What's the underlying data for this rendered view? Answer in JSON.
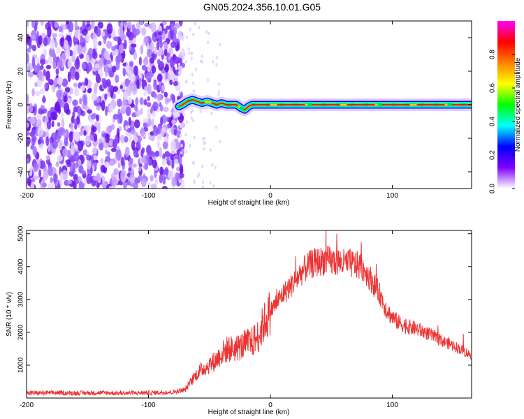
{
  "title": "GN05.2024.356.10.01.G05",
  "chart_data": [
    {
      "type": "heatmap",
      "title": "GN05.2024.356.10.01.G05",
      "xlabel": "Height of straight line (km)",
      "ylabel": "Frequency (Hz)",
      "xlim": [
        -200,
        165
      ],
      "ylim": [
        -50,
        50
      ],
      "xticks": [
        -200,
        -100,
        0,
        100
      ],
      "yticks": [
        -40,
        -20,
        0,
        20,
        40
      ],
      "grid": false,
      "noise_region_x": [
        -200,
        -75
      ],
      "signal_trace": {
        "x": [
          -75,
          -72,
          -68,
          -64,
          -60,
          -56,
          -52,
          -48,
          -44,
          -40,
          -36,
          -32,
          -28,
          -24,
          -21,
          -18,
          -15,
          -10,
          0,
          20,
          50,
          80,
          100,
          120,
          140,
          150,
          160,
          165
        ],
        "y": [
          -1,
          0,
          2,
          3,
          2,
          1,
          2,
          1,
          0,
          1,
          0,
          0,
          0,
          -2,
          -3,
          -1,
          0,
          0,
          0,
          0,
          0,
          0,
          0,
          0,
          0,
          0,
          0,
          0
        ]
      },
      "colorbar": {
        "label": "Normalized spectral amplitude",
        "range": [
          0,
          1
        ],
        "ticks": [
          "0.0",
          "0.2",
          "0.4",
          "0.6",
          "0.8"
        ],
        "colors": [
          "#ffffff",
          "#8000ff",
          "#0000ff",
          "#00ffff",
          "#00ff00",
          "#ffff00",
          "#ff8000",
          "#ff0000",
          "#ff00ff"
        ]
      }
    },
    {
      "type": "line",
      "xlabel": "Height of straight line (km)",
      "ylabel": "SNR (10 * v/v)",
      "xlim": [
        -200,
        165
      ],
      "ylim": [
        0,
        5100
      ],
      "xticks": [
        -200,
        -100,
        0,
        100
      ],
      "yticks": [
        1000,
        2000,
        3000,
        4000,
        5000
      ],
      "grid": false,
      "series": [
        {
          "color": "#ee3333",
          "x": [
            -200,
            -180,
            -160,
            -140,
            -120,
            -100,
            -80,
            -70,
            -65,
            -60,
            -55,
            -50,
            -45,
            -40,
            -35,
            -30,
            -25,
            -20,
            -15,
            -10,
            -5,
            0,
            5,
            10,
            15,
            20,
            25,
            30,
            35,
            40,
            45,
            50,
            55,
            60,
            65,
            70,
            75,
            80,
            85,
            90,
            95,
            100,
            105,
            110,
            120,
            130,
            140,
            150,
            160,
            165
          ],
          "y": [
            150,
            160,
            150,
            160,
            150,
            160,
            180,
            250,
            500,
            750,
            900,
            1000,
            1150,
            1350,
            1500,
            1500,
            1550,
            1650,
            1700,
            1900,
            2300,
            2650,
            2900,
            3150,
            3350,
            3550,
            3800,
            4000,
            4100,
            4150,
            4200,
            4150,
            4150,
            4100,
            4100,
            4050,
            4000,
            3750,
            3450,
            3150,
            2700,
            2450,
            2300,
            2200,
            2100,
            1950,
            1750,
            1600,
            1400,
            1300
          ]
        }
      ]
    }
  ]
}
